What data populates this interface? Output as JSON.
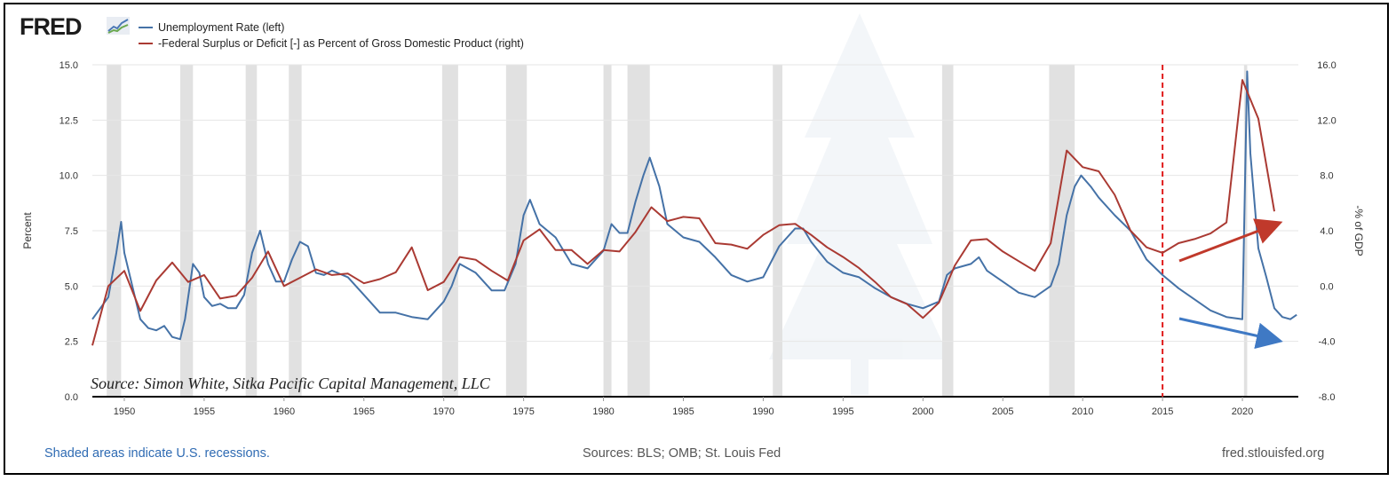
{
  "logo": {
    "text": "FRED",
    "icon": "chart-line-icon"
  },
  "legend": [
    {
      "label": "Unemployment Rate (left)",
      "color": "#4572a7"
    },
    {
      "label": "-Federal Surplus or Deficit [-] as Percent of Gross Domestic Product (right)",
      "color": "#aa3a33"
    }
  ],
  "footer": {
    "left": "Shaded areas indicate U.S. recessions.",
    "middle": "Sources: BLS; OMB; St. Louis Fed",
    "right": "fred.stlouisfed.org"
  },
  "annotation": "Source: Simon White, Sitka Pacific Capital Management, LLC",
  "chart_data": {
    "type": "line",
    "xlim": [
      1948,
      2023.5
    ],
    "x_ticks": [
      "1950",
      "1955",
      "1960",
      "1965",
      "1970",
      "1975",
      "1980",
      "1985",
      "1990",
      "1995",
      "2000",
      "2005",
      "2010",
      "2015",
      "2020"
    ],
    "y_left": {
      "label": "Percent",
      "ylim": [
        0,
        15
      ],
      "ticks": [
        "0.0",
        "2.5",
        "5.0",
        "7.5",
        "10.0",
        "12.5",
        "15.0"
      ]
    },
    "y_right": {
      "label": "-% of GDP",
      "ylim": [
        -8,
        16
      ],
      "ticks": [
        "-8.0",
        "-4.0",
        "0.0",
        "4.0",
        "8.0",
        "12.0",
        "16.0"
      ]
    },
    "recessions": [
      [
        1948.9,
        1949.8
      ],
      [
        1953.5,
        1954.3
      ],
      [
        1957.6,
        1958.3
      ],
      [
        1960.3,
        1961.1
      ],
      [
        1969.9,
        1970.9
      ],
      [
        1973.9,
        1975.2
      ],
      [
        1980.0,
        1980.5
      ],
      [
        1981.5,
        1982.9
      ],
      [
        1990.6,
        1991.2
      ],
      [
        2001.2,
        2001.9
      ],
      [
        2007.9,
        2009.5
      ],
      [
        2020.1,
        2020.3
      ]
    ],
    "vertical_marker": {
      "x": 2015,
      "style": "dashed",
      "color": "#e01b1b"
    },
    "series": [
      {
        "name": "Unemployment Rate (left)",
        "axis": "left",
        "color": "#4572a7",
        "x": [
          1948.0,
          1948.5,
          1949.0,
          1949.5,
          1949.8,
          1950.0,
          1950.5,
          1951.0,
          1951.5,
          1952.0,
          1952.5,
          1953.0,
          1953.5,
          1953.8,
          1954.3,
          1954.7,
          1955.0,
          1955.5,
          1956.0,
          1956.5,
          1957.0,
          1957.5,
          1958.0,
          1958.5,
          1959.0,
          1959.5,
          1960.0,
          1960.5,
          1961.0,
          1961.5,
          1962.0,
          1962.5,
          1963.0,
          1964.0,
          1965.0,
          1966.0,
          1967.0,
          1968.0,
          1969.0,
          1970.0,
          1970.5,
          1971.0,
          1972.0,
          1973.0,
          1973.8,
          1974.5,
          1975.0,
          1975.4,
          1976.0,
          1977.0,
          1978.0,
          1979.0,
          1980.0,
          1980.5,
          1981.0,
          1981.5,
          1982.0,
          1982.5,
          1982.9,
          1983.5,
          1984.0,
          1985.0,
          1986.0,
          1987.0,
          1988.0,
          1989.0,
          1990.0,
          1991.0,
          1992.0,
          1992.5,
          1993.0,
          1994.0,
          1995.0,
          1996.0,
          1997.0,
          1998.0,
          1999.0,
          2000.0,
          2001.0,
          2001.5,
          2002.0,
          2003.0,
          2003.5,
          2004.0,
          2005.0,
          2006.0,
          2007.0,
          2008.0,
          2008.5,
          2009.0,
          2009.5,
          2009.9,
          2010.5,
          2011.0,
          2012.0,
          2013.0,
          2014.0,
          2015.0,
          2016.0,
          2017.0,
          2018.0,
          2019.0,
          2020.0,
          2020.3,
          2020.5,
          2021.0,
          2021.5,
          2022.0,
          2022.5,
          2023.0,
          2023.4
        ],
        "values": [
          3.5,
          4.0,
          4.5,
          6.5,
          7.9,
          6.5,
          5.0,
          3.5,
          3.1,
          3.0,
          3.2,
          2.7,
          2.6,
          3.5,
          6.0,
          5.6,
          4.5,
          4.1,
          4.2,
          4.0,
          4.0,
          4.6,
          6.5,
          7.5,
          6.0,
          5.2,
          5.2,
          6.2,
          7.0,
          6.8,
          5.6,
          5.5,
          5.7,
          5.4,
          4.6,
          3.8,
          3.8,
          3.6,
          3.5,
          4.3,
          5.0,
          6.0,
          5.6,
          4.8,
          4.8,
          6.0,
          8.2,
          8.9,
          7.8,
          7.2,
          6.0,
          5.8,
          6.6,
          7.8,
          7.4,
          7.4,
          8.8,
          10.0,
          10.8,
          9.5,
          7.8,
          7.2,
          7.0,
          6.3,
          5.5,
          5.2,
          5.4,
          6.8,
          7.6,
          7.6,
          7.0,
          6.1,
          5.6,
          5.4,
          4.9,
          4.5,
          4.2,
          4.0,
          4.3,
          5.5,
          5.8,
          6.0,
          6.3,
          5.7,
          5.2,
          4.7,
          4.5,
          5.0,
          6.0,
          8.2,
          9.5,
          10.0,
          9.5,
          9.0,
          8.2,
          7.5,
          6.2,
          5.5,
          4.9,
          4.4,
          3.9,
          3.6,
          3.5,
          14.7,
          11.0,
          6.7,
          5.4,
          4.0,
          3.6,
          3.5,
          3.7
        ]
      },
      {
        "name": "-Federal Surplus or Deficit [-] as Percent of Gross Domestic Product (right)",
        "axis": "right",
        "color": "#aa3a33",
        "x": [
          1948,
          1949,
          1950,
          1951,
          1952,
          1953,
          1954,
          1955,
          1956,
          1957,
          1958,
          1959,
          1960,
          1961,
          1962,
          1963,
          1964,
          1965,
          1966,
          1967,
          1968,
          1969,
          1970,
          1971,
          1972,
          1973,
          1974,
          1975,
          1976,
          1977,
          1978,
          1979,
          1980,
          1981,
          1982,
          1983,
          1984,
          1985,
          1986,
          1987,
          1988,
          1989,
          1990,
          1991,
          1992,
          1993,
          1994,
          1995,
          1996,
          1997,
          1998,
          1999,
          2000,
          2001,
          2002,
          2003,
          2004,
          2005,
          2006,
          2007,
          2008,
          2009,
          2010,
          2011,
          2012,
          2013,
          2014,
          2015,
          2016,
          2017,
          2018,
          2019,
          2020,
          2021,
          2022
        ],
        "values": [
          -4.3,
          0.0,
          1.1,
          -1.8,
          0.4,
          1.7,
          0.3,
          0.8,
          -0.9,
          -0.7,
          0.6,
          2.5,
          0.0,
          0.6,
          1.2,
          0.8,
          0.9,
          0.2,
          0.5,
          1.0,
          2.8,
          -0.3,
          0.3,
          2.1,
          1.9,
          1.1,
          0.4,
          3.3,
          4.1,
          2.6,
          2.6,
          1.6,
          2.6,
          2.5,
          3.9,
          5.7,
          4.7,
          5.0,
          4.9,
          3.1,
          3.0,
          2.7,
          3.7,
          4.4,
          4.5,
          3.7,
          2.8,
          2.1,
          1.3,
          0.3,
          -0.8,
          -1.3,
          -2.3,
          -1.2,
          1.5,
          3.3,
          3.4,
          2.5,
          1.8,
          1.1,
          3.1,
          9.8,
          8.6,
          8.3,
          6.6,
          4.0,
          2.8,
          2.4,
          3.1,
          3.4,
          3.8,
          4.6,
          14.9,
          12.1,
          5.4
        ]
      }
    ]
  }
}
